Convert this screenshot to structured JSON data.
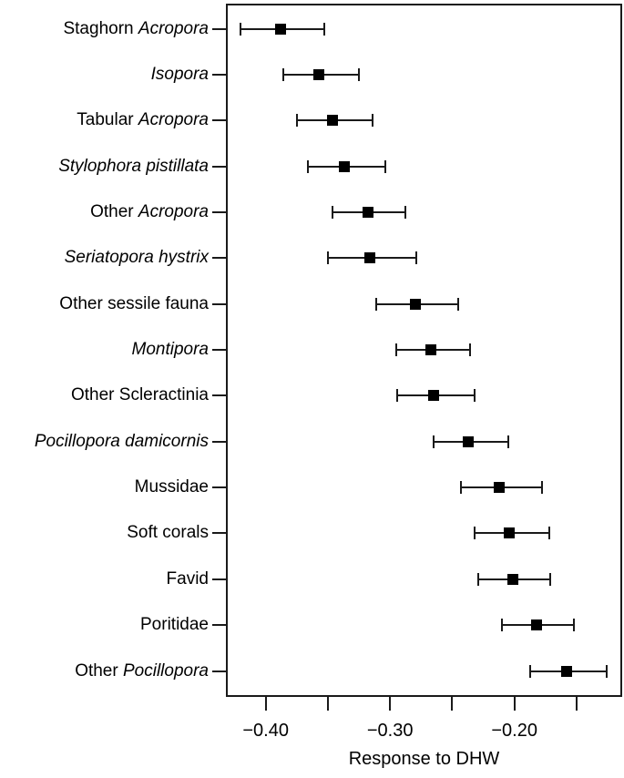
{
  "chart_data": {
    "type": "scatter",
    "subtype": "horizontal-dot-with-error-bars",
    "title": "",
    "xlabel": "Response to DHW",
    "ylabel": "",
    "xlim": [
      -0.432,
      -0.113
    ],
    "grid": false,
    "legend_position": "none",
    "colors": {
      "line": "#1a1a1a",
      "marker": "#000000",
      "text": "#000000",
      "background": "#ffffff"
    },
    "x_ticks": [
      {
        "value": -0.4,
        "label": "−0.40"
      },
      {
        "value": -0.35,
        "label": ""
      },
      {
        "value": -0.3,
        "label": "−0.30"
      },
      {
        "value": -0.25,
        "label": ""
      },
      {
        "value": -0.2,
        "label": "−0.20"
      },
      {
        "value": -0.15,
        "label": ""
      }
    ],
    "rows": [
      {
        "label": "Staghorn Acropora",
        "label_parts": [
          {
            "text": "Staghorn ",
            "italic": false
          },
          {
            "text": "Acropora",
            "italic": true
          }
        ],
        "mean": -0.388,
        "lo": -0.42,
        "hi": -0.353
      },
      {
        "label": "Isopora",
        "label_parts": [
          {
            "text": "Isopora",
            "italic": true
          }
        ],
        "mean": -0.357,
        "lo": -0.386,
        "hi": -0.325
      },
      {
        "label": "Tabular Acropora",
        "label_parts": [
          {
            "text": "Tabular ",
            "italic": false
          },
          {
            "text": "Acropora",
            "italic": true
          }
        ],
        "mean": -0.346,
        "lo": -0.375,
        "hi": -0.314
      },
      {
        "label": "Stylophora pistillata",
        "label_parts": [
          {
            "text": "Stylophora pistillata",
            "italic": true
          }
        ],
        "mean": -0.337,
        "lo": -0.366,
        "hi": -0.304
      },
      {
        "label": "Other Acropora",
        "label_parts": [
          {
            "text": "Other ",
            "italic": false
          },
          {
            "text": "Acropora",
            "italic": true
          }
        ],
        "mean": -0.318,
        "lo": -0.346,
        "hi": -0.288
      },
      {
        "label": "Seriatopora hystrix",
        "label_parts": [
          {
            "text": "Seriatopora hystrix",
            "italic": true
          }
        ],
        "mean": -0.316,
        "lo": -0.35,
        "hi": -0.279
      },
      {
        "label": "Other sessile fauna",
        "label_parts": [
          {
            "text": "Other sessile fauna",
            "italic": false
          }
        ],
        "mean": -0.28,
        "lo": -0.311,
        "hi": -0.245
      },
      {
        "label": "Montipora",
        "label_parts": [
          {
            "text": "Montipora",
            "italic": true
          }
        ],
        "mean": -0.267,
        "lo": -0.295,
        "hi": -0.236
      },
      {
        "label": "Other Scleractinia",
        "label_parts": [
          {
            "text": "Other Scleractinia",
            "italic": false
          }
        ],
        "mean": -0.265,
        "lo": -0.294,
        "hi": -0.232
      },
      {
        "label": "Pocillopora damicornis",
        "label_parts": [
          {
            "text": "Pocillopora damicornis",
            "italic": true
          }
        ],
        "mean": -0.237,
        "lo": -0.265,
        "hi": -0.205
      },
      {
        "label": "Mussidae",
        "label_parts": [
          {
            "text": "Mussidae",
            "italic": false
          }
        ],
        "mean": -0.212,
        "lo": -0.243,
        "hi": -0.178
      },
      {
        "label": "Soft corals",
        "label_parts": [
          {
            "text": "Soft corals",
            "italic": false
          }
        ],
        "mean": -0.204,
        "lo": -0.232,
        "hi": -0.172
      },
      {
        "label": "Favid",
        "label_parts": [
          {
            "text": "Favid",
            "italic": false
          }
        ],
        "mean": -0.201,
        "lo": -0.229,
        "hi": -0.171
      },
      {
        "label": "Poritidae",
        "label_parts": [
          {
            "text": "Poritidae",
            "italic": false
          }
        ],
        "mean": -0.182,
        "lo": -0.21,
        "hi": -0.152
      },
      {
        "label": "Other Pocillopora",
        "label_parts": [
          {
            "text": "Other ",
            "italic": false
          },
          {
            "text": "Pocillopora",
            "italic": true
          }
        ],
        "mean": -0.158,
        "lo": -0.187,
        "hi": -0.126
      }
    ]
  }
}
